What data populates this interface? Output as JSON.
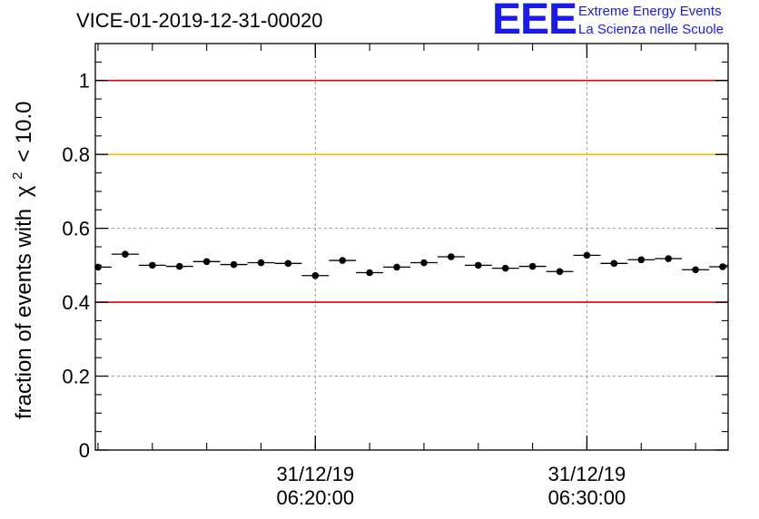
{
  "header": {
    "title": "VICE-01-2019-12-31-00020",
    "logo_mark": "EEE",
    "logo_line1": "Extreme Energy Events",
    "logo_line2": "La Scienza nelle Scuole"
  },
  "colors": {
    "red_line": "#e00000",
    "yellow_line": "#ffc000",
    "logo": "#1a1aee"
  },
  "chart_data": {
    "type": "scatter",
    "title": "VICE-01-2019-12-31-00020",
    "ylabel": "fraction of events with",
    "ylabel_symbol": "χ",
    "ylabel_sup": "2",
    "ylabel_tail": "< 10.0",
    "ylim": [
      0,
      1.1
    ],
    "yticks": [
      0,
      0.2,
      0.4,
      0.6,
      0.8,
      1
    ],
    "ytick_labels": [
      "0",
      "0.2",
      "0.4",
      "0.6",
      "0.8",
      "1"
    ],
    "xlim_minutes": [
      -8.1,
      15.2
    ],
    "xticks": [
      {
        "minute": 0,
        "date": "31/12/19",
        "time": "06:20:00"
      },
      {
        "minute": 10,
        "date": "31/12/19",
        "time": "06:30:00"
      }
    ],
    "grid": true,
    "reference_lines": [
      {
        "y": 1.0,
        "color": "red"
      },
      {
        "y": 0.8,
        "color": "yellow"
      },
      {
        "y": 0.4,
        "color": "red"
      }
    ],
    "bin_width_minutes": 1,
    "x_minutes": [
      -8,
      -7,
      -6,
      -5,
      -4,
      -3,
      -2,
      -1,
      0,
      1,
      2,
      3,
      4,
      5,
      6,
      7,
      8,
      9,
      10,
      11,
      12,
      13,
      14,
      15
    ],
    "values": [
      0.495,
      0.53,
      0.5,
      0.497,
      0.51,
      0.502,
      0.507,
      0.505,
      0.472,
      0.513,
      0.48,
      0.495,
      0.507,
      0.523,
      0.5,
      0.492,
      0.497,
      0.483,
      0.527,
      0.505,
      0.515,
      0.518,
      0.488,
      0.496
    ]
  }
}
